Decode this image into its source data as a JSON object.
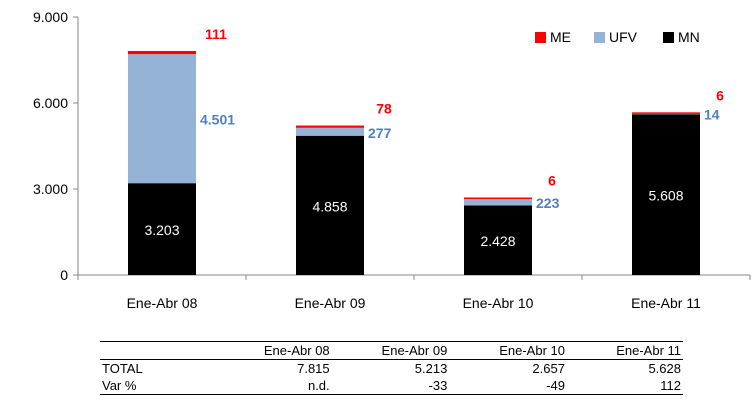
{
  "chart_data": {
    "type": "bar",
    "stacked": true,
    "categories": [
      "Ene-Abr 08",
      "Ene-Abr 09",
      "Ene-Abr 10",
      "Ene-Abr 11"
    ],
    "series": [
      {
        "name": "MN",
        "color": "#000000",
        "values": [
          3203,
          4858,
          2428,
          5608
        ],
        "labels": [
          "3.203",
          "4.858",
          "2.428",
          "5.608"
        ]
      },
      {
        "name": "UFV",
        "color": "#95B3D7",
        "values": [
          4501,
          277,
          223,
          14
        ],
        "labels": [
          "4.501",
          "277",
          "223",
          "14"
        ]
      },
      {
        "name": "ME",
        "color": "#FF0000",
        "values": [
          111,
          78,
          6,
          6
        ],
        "labels": [
          "111",
          "78",
          "6",
          "6"
        ]
      }
    ],
    "ylim": [
      0,
      9000
    ],
    "yticks": [
      0,
      3000,
      6000,
      9000
    ],
    "ytick_labels": [
      "0",
      "3.000",
      "6.000",
      "9.000"
    ],
    "grid": false,
    "legend_position": "top-right",
    "legend_order": [
      "ME",
      "UFV",
      "MN"
    ],
    "label_colors": {
      "MN": "#FFFFFF",
      "UFV": "#4F81BD",
      "ME": "#FF0000"
    }
  },
  "table": {
    "headers": [
      "",
      "Ene-Abr 08",
      "Ene-Abr 09",
      "Ene-Abr 10",
      "Ene-Abr 11"
    ],
    "rows": [
      {
        "name": "TOTAL",
        "cells": [
          "7.815",
          "5.213",
          "2.657",
          "5.628"
        ]
      },
      {
        "name": "Var %",
        "cells": [
          "n.d.",
          "-33",
          "-49",
          "112"
        ]
      }
    ]
  }
}
